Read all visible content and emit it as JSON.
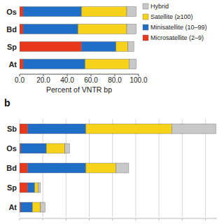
{
  "chart_data": [
    {
      "type": "bar",
      "orientation": "horizontal",
      "stacked": true,
      "x_label": "Percent of VNTR bp",
      "categories": [
        "Os",
        "Bd",
        "Sp",
        "At"
      ],
      "series": [
        {
          "name": "Microsatellite (2–9)",
          "color": "#e8391f",
          "values": [
            3,
            3,
            52,
            3
          ]
        },
        {
          "name": "Minisatellite (10–99)",
          "color": "#1f6fc9",
          "values": [
            49,
            46,
            29,
            52
          ]
        },
        {
          "name": "Satellite (≥100)",
          "color": "#f7d21a",
          "values": [
            38,
            41,
            10,
            37
          ]
        },
        {
          "name": "Hybrid",
          "color": "#c8c8c8",
          "values": [
            8,
            8,
            5,
            6
          ]
        }
      ],
      "xlim": [
        0,
        100
      ],
      "xticks": [
        {
          "value": 0,
          "label": "0.0"
        },
        {
          "value": 20,
          "label": "20.0"
        },
        {
          "value": 40,
          "label": "40.0"
        },
        {
          "value": 60,
          "label": "60.0"
        },
        {
          "value": 80,
          "label": "80.0"
        },
        {
          "value": 100,
          "label": "100.0"
        }
      ],
      "grid": false,
      "legend": "right"
    },
    {
      "type": "bar",
      "orientation": "horizontal",
      "stacked": true,
      "title": "b",
      "categories": [
        "Sb",
        "Os",
        "Bd",
        "Sp",
        "At"
      ],
      "series": [
        {
          "color": "#e8391f",
          "values": [
            0.35,
            0.05,
            0.35,
            0.35,
            0.05
          ]
        },
        {
          "color": "#1f6fc9",
          "values": [
            2.5,
            1.1,
            2.5,
            0.3,
            0.5
          ]
        },
        {
          "color": "#f7d21a",
          "values": [
            3.7,
            0.8,
            1.3,
            0.15,
            0.35
          ]
        },
        {
          "color": "#c8c8c8",
          "values": [
            1.9,
            0.2,
            0.55,
            0.1,
            0.2
          ]
        }
      ],
      "xlim": [
        0,
        8.5
      ],
      "xticks": [
        0,
        1,
        2,
        3,
        4,
        5,
        6,
        7,
        8
      ],
      "grid": true,
      "tick_labels": false
    }
  ]
}
